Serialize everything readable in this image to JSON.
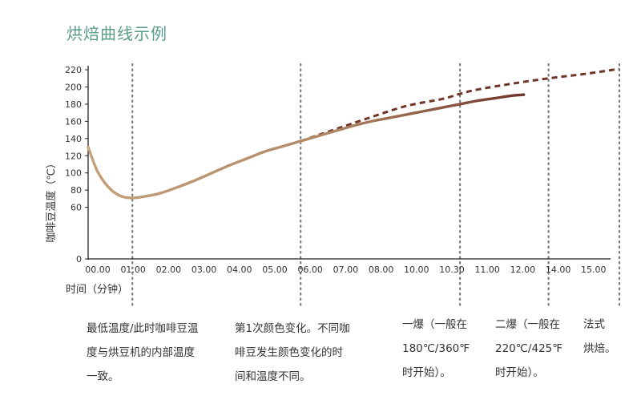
{
  "title": "烘焙曲线示例",
  "chart_data": {
    "type": "line",
    "ylabel": "咖啡豆温度（℃）",
    "xlabel": "时间（分钟）",
    "ylim": [
      0,
      220
    ],
    "yticks": [
      0,
      60,
      80,
      100,
      120,
      140,
      160,
      180,
      200,
      220
    ],
    "xticks": [
      "00.00",
      "01.00",
      "02.00",
      "03.00",
      "04.00",
      "05.00",
      "06.00",
      "07.00",
      "08.00",
      "10.00",
      "10.30",
      "11.00",
      "12.00",
      "14.00",
      "15.00"
    ],
    "series": [
      {
        "style": "solid",
        "color_start": "#c4a07a",
        "color_end": "#6e3428",
        "x": [
          0,
          0.25,
          0.5,
          0.75,
          1.0,
          1.25,
          1.5,
          2.0,
          2.5,
          3.0,
          3.5,
          4.0,
          4.5,
          5.0,
          5.5,
          6.0,
          6.5,
          7.0,
          7.5,
          8.0,
          8.5,
          9.0,
          9.5,
          10.0,
          10.5,
          11.0,
          11.5,
          12.0,
          12.3
        ],
        "y": [
          130,
          103,
          87,
          77,
          72,
          71,
          72,
          76,
          83,
          91,
          100,
          109,
          117,
          125,
          131,
          137,
          143,
          149,
          155,
          160,
          164,
          168,
          172,
          176,
          180,
          184,
          187,
          190,
          191
        ]
      },
      {
        "style": "dashed",
        "color": "#6e3428",
        "x": [
          6.0,
          7.0,
          8.0,
          9.0,
          10.0,
          10.5,
          11.0,
          12.0,
          13.0,
          14.0,
          15.0
        ],
        "y": [
          137,
          151,
          165,
          178,
          186,
          192,
          197,
          204,
          210,
          215,
          221
        ]
      }
    ],
    "markers": [
      {
        "x": 1.25,
        "style": "dotted"
      },
      {
        "x": 6.0,
        "style": "dotted"
      },
      {
        "x": 10.5,
        "style": "dotted"
      },
      {
        "x": 13.0,
        "style": "dotted"
      },
      {
        "x": 15.0,
        "style": "dotted"
      }
    ],
    "annotations": [
      {
        "lines": [
          "最低温度/此时咖啡豆温",
          "度与烘豆机的内部温度",
          "一致。"
        ]
      },
      {
        "lines": [
          "第1次颜色变化。不同咖",
          "啡豆发生颜色变化的时",
          "间和温度不同。"
        ]
      },
      {
        "lines": [
          "一爆（一般在",
          "180℃/360℉",
          "时开始）。"
        ]
      },
      {
        "lines": [
          "二爆（一般在",
          "220℃/425℉",
          "时开始）。"
        ]
      },
      {
        "lines": [
          "法式",
          "烘焙。"
        ]
      }
    ]
  }
}
